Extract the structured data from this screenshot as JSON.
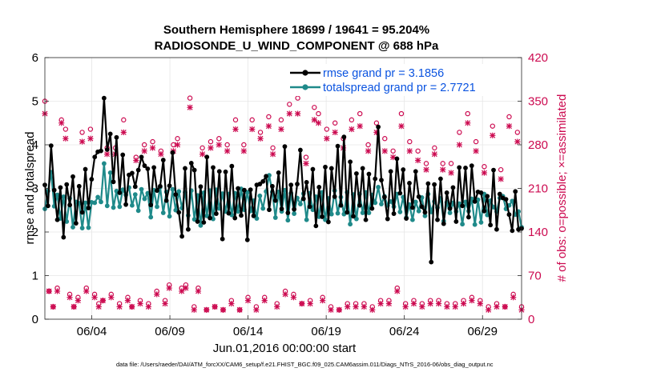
{
  "chart_data": {
    "type": "line",
    "title": "Southern Hemisphere 18699 / 19641 = 95.204%",
    "subtitle": "RADIOSONDE_U_WIND_COMPONENT @ 688 hPa",
    "xlabel": "Jun.01,2016 00:00:00 start",
    "ylabel": "rmse and totalspread",
    "y2label": "# of obs: o=possible; ×=assimilated",
    "x_range_days": [
      1,
      31.5
    ],
    "ylim": [
      0,
      6
    ],
    "y2lim": [
      0,
      420
    ],
    "x_ticks": [
      {
        "day": 4,
        "label": "06/04"
      },
      {
        "day": 9,
        "label": "06/09"
      },
      {
        "day": 14,
        "label": "06/14"
      },
      {
        "day": 19,
        "label": "06/19"
      },
      {
        "day": 24,
        "label": "06/24"
      },
      {
        "day": 29,
        "label": "06/29"
      }
    ],
    "y_ticks": [
      "0",
      "1",
      "2",
      "3",
      "4",
      "5",
      "6"
    ],
    "y2_ticks": [
      "0",
      "70",
      "140",
      "210",
      "280",
      "350",
      "420"
    ],
    "grid": true,
    "legend_position": "top-right",
    "series": [
      {
        "name": "rmse grand pr = 3.1856",
        "color": "#000000",
        "axis": "left",
        "values": [
          3.08,
          2.6,
          3.98,
          2.96,
          2.28,
          3.02,
          1.88,
          3.09,
          2.62,
          3.27,
          2.2,
          3.05,
          2.45,
          3.44,
          2.55,
          3.21,
          3.72,
          3.84,
          3.86,
          5.07,
          3.89,
          4.25,
          3.15,
          4.17,
          2.9,
          3.77,
          2.63,
          3.31,
          3.35,
          3.04,
          3.42,
          3.72,
          3.52,
          3.45,
          2.62,
          3.48,
          2.95,
          3.05,
          3.65,
          2.72,
          3.06,
          3.82,
          2.86,
          2.45,
          1.9,
          3.46,
          2.06,
          3.58,
          3.42,
          2.24,
          3.04,
          2.22,
          3.72,
          2.32,
          3.48,
          2.42,
          3.39,
          1.84,
          3.38,
          2.43,
          3.51,
          2.32,
          3.0,
          2.38,
          2.96,
          1.82,
          2.97,
          2.37,
          3.08,
          3.1,
          3.16,
          3.28,
          2.51,
          3.05,
          2.72,
          3.36,
          2.53,
          3.96,
          2.44,
          3.08,
          2.52,
          3.1,
          3.88,
          2.76,
          3.14,
          2.58,
          3.44,
          2.14,
          3.03,
          2.35,
          3.49,
          2.23,
          3.46,
          2.81,
          3.97,
          2.61,
          4.18,
          2.45,
          3.61,
          2.36,
          3.34,
          2.61,
          3.46,
          2.28,
          3.33,
          2.54,
          3.22,
          4.41,
          3.19,
          2.8,
          2.3,
          3.39,
          2.42,
          3.68,
          2.89,
          3.43,
          2.31,
          3.12,
          2.56,
          3.39,
          2.81,
          2.58,
          2.45,
          3.11,
          1.31,
          3.09,
          2.28,
          3.22,
          2.19,
          2.9,
          2.54,
          3.02,
          2.24,
          3.48,
          2.6,
          3.47,
          2.34,
          3.52,
          2.7,
          2.92,
          2.9,
          2.48,
          2.82,
          2.16,
          3.42,
          2.06,
          2.87,
          2.78,
          2.75,
          2.4,
          2.03,
          2.93,
          2.06,
          2.08
        ]
      },
      {
        "name": "totalspread grand pr = 2.7721",
        "color": "#1f8a8a",
        "axis": "left",
        "values": [
          2.53,
          2.94,
          3.37,
          2.59,
          2.85,
          2.31,
          2.81,
          2.24,
          2.77,
          2.11,
          2.69,
          2.66,
          2.09,
          2.67,
          2.1,
          2.68,
          2.67,
          2.8,
          2.69,
          3.57,
          2.6,
          3.36,
          2.56,
          2.94,
          2.58,
          2.97,
          2.85,
          3.02,
          2.61,
          2.86,
          2.49,
          2.98,
          2.76,
          2.89,
          2.34,
          2.96,
          2.58,
          3.03,
          2.44,
          2.92,
          2.36,
          2.98,
          2.5,
          2.93,
          2.55,
          2.91,
          2.38,
          2.95,
          2.29,
          2.84,
          2.15,
          2.9,
          2.37,
          2.95,
          2.3,
          2.97,
          2.54,
          2.88,
          2.47,
          2.87,
          2.39,
          2.89,
          2.47,
          2.99,
          2.51,
          2.91,
          2.48,
          2.72,
          2.31,
          2.83,
          2.54,
          2.93,
          3.3,
          2.92,
          2.33,
          2.92,
          2.47,
          2.96,
          2.27,
          2.89,
          2.42,
          2.78,
          2.64,
          2.88,
          2.28,
          2.89,
          2.51,
          2.81,
          2.35,
          2.91,
          2.28,
          2.77,
          2.41,
          2.95,
          2.43,
          2.8,
          2.41,
          2.91,
          2.18,
          2.86,
          2.3,
          2.87,
          2.44,
          2.91,
          2.44,
          2.85,
          2.67,
          3.03,
          2.64,
          2.82,
          2.61,
          2.7,
          2.58,
          2.87,
          2.46,
          2.8,
          2.33,
          2.63,
          2.28,
          2.69,
          2.48,
          2.79,
          2.37,
          2.87,
          2.46,
          2.7,
          2.56,
          2.77,
          2.25,
          2.68,
          2.44,
          2.67,
          2.47,
          2.65,
          2.18,
          2.69,
          2.48,
          2.76,
          2.17,
          2.74,
          2.22,
          2.87,
          2.39,
          2.72,
          2.57,
          2.47,
          2.78,
          2.82,
          2.53,
          2.61,
          2.71,
          2.4,
          2.47,
          2.11
        ]
      },
      {
        "name": "# obs possible",
        "color": "#cc0a50",
        "axis": "right",
        "marker": "o",
        "values": [
          350,
          45,
          20,
          50,
          320,
          305,
          40,
          20,
          35,
          300,
          50,
          305,
          40,
          25,
          30,
          275,
          40,
          275,
          25,
          320,
          35,
          20,
          260,
          30,
          280,
          25,
          285,
          45,
          270,
          30,
          55,
          280,
          290,
          50,
          55,
          355,
          20,
          50,
          275,
          15,
          285,
          20,
          290,
          15,
          280,
          30,
          320,
          15,
          280,
          35,
          320,
          20,
          300,
          35,
          325,
          275,
          25,
          320,
          45,
          345,
          40,
          355,
          25,
          260,
          30,
          340,
          330,
          35,
          305,
          20,
          315,
          15,
          290,
          25,
          320,
          25,
          330,
          25,
          280,
          20,
          315,
          30,
          290,
          30,
          270,
          50,
          330,
          25,
          285,
          30,
          270,
          25,
          250,
          30,
          275,
          30,
          250,
          25,
          250,
          25,
          300,
          30,
          330,
          35,
          285,
          30,
          245,
          20,
          310,
          25,
          240,
          20,
          325,
          40,
          300,
          20
        ]
      },
      {
        "name": "# obs assimilated",
        "color": "#cc0a50",
        "axis": "right",
        "marker": "x",
        "values": [
          330,
          45,
          20,
          45,
          315,
          290,
          35,
          20,
          30,
          285,
          45,
          290,
          35,
          20,
          30,
          265,
          35,
          265,
          20,
          300,
          30,
          20,
          255,
          25,
          270,
          20,
          275,
          40,
          265,
          25,
          50,
          270,
          280,
          45,
          50,
          340,
          15,
          45,
          265,
          15,
          275,
          20,
          280,
          15,
          270,
          25,
          305,
          15,
          270,
          30,
          305,
          15,
          290,
          30,
          310,
          265,
          20,
          305,
          40,
          330,
          35,
          330,
          25,
          250,
          25,
          320,
          315,
          30,
          290,
          15,
          300,
          15,
          275,
          20,
          305,
          20,
          310,
          20,
          270,
          15,
          300,
          25,
          270,
          25,
          260,
          45,
          310,
          20,
          270,
          25,
          255,
          20,
          240,
          25,
          265,
          25,
          240,
          20,
          235,
          20,
          280,
          25,
          315,
          30,
          270,
          25,
          235,
          15,
          295,
          20,
          225,
          20,
          310,
          35,
          285,
          15
        ]
      }
    ]
  },
  "footer": {
    "data_file": "data file: /Users/raeder/DAI/ATM_forcXX/CAM6_setup/f.e21.FHIST_BGC.f09_025.CAM6assim.011/Diags_NTrS_2016-06/obs_diag_output.nc"
  },
  "colors": {
    "left_axis": "#000000",
    "right_axis": "#cc0a50",
    "legend_text": "#0a53e0",
    "grid": "#e6e6e6"
  }
}
